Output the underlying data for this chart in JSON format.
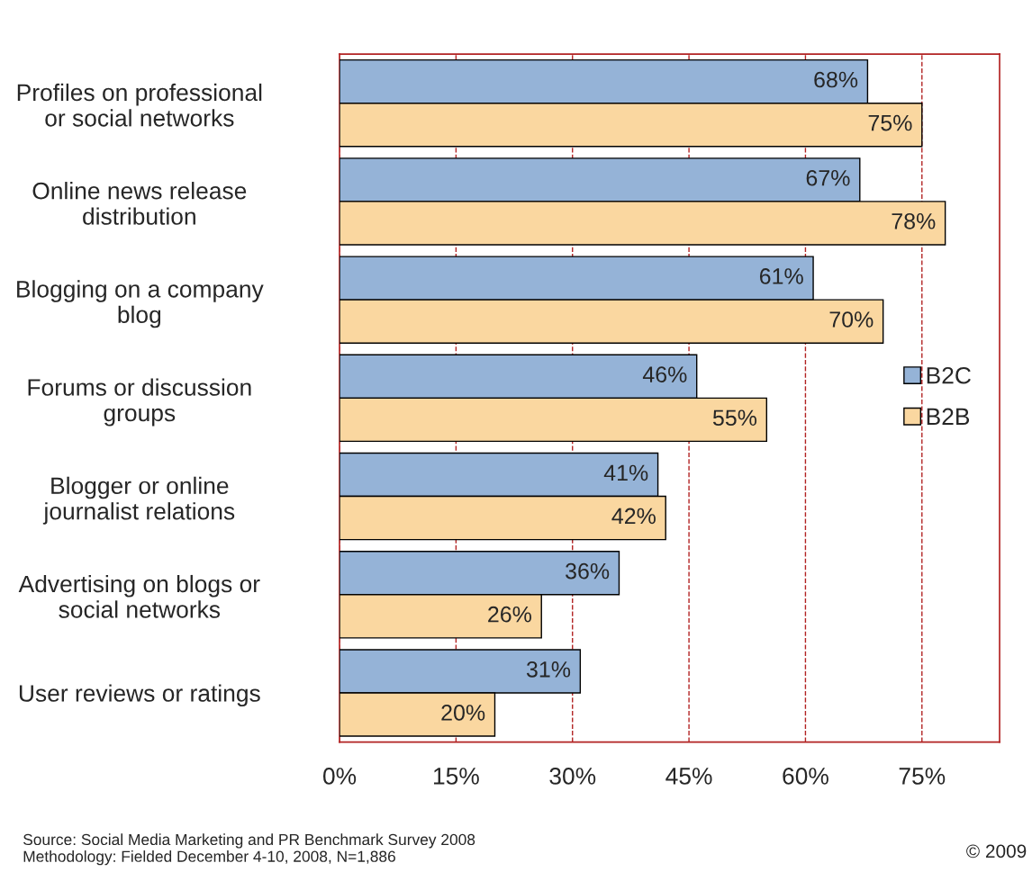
{
  "chart_data": {
    "type": "bar",
    "orientation": "horizontal",
    "categories": [
      "Profiles on professional\nor social networks",
      "Online news release\ndistribution",
      "Blogging on a company\nblog",
      "Forums or discussion\ngroups",
      "Blogger or online\njournalist relations",
      "Advertising on blogs or\nsocial networks",
      "User reviews or ratings"
    ],
    "series": [
      {
        "name": "B2C",
        "color": "#95b3d7",
        "values": [
          68,
          67,
          61,
          46,
          41,
          36,
          31
        ],
        "value_labels": [
          "68%",
          "67%",
          "61%",
          "46%",
          "41%",
          "36%",
          "31%"
        ]
      },
      {
        "name": "B2B",
        "color": "#fad7a0",
        "values": [
          75,
          78,
          70,
          55,
          42,
          26,
          20
        ],
        "value_labels": [
          "75%",
          "78%",
          "70%",
          "55%",
          "42%",
          "26%",
          "20%"
        ]
      }
    ],
    "xlim": [
      0,
      85
    ],
    "xticks": [
      {
        "value": 0,
        "label": "0%"
      },
      {
        "value": 15,
        "label": "15%"
      },
      {
        "value": 30,
        "label": "30%"
      },
      {
        "value": 45,
        "label": "45%"
      },
      {
        "value": 60,
        "label": "60%"
      },
      {
        "value": 75,
        "label": "75%"
      }
    ],
    "grid": "x",
    "legend": "right",
    "annotations": [
      "Source: Social Media Marketing and PR Benchmark Survey 2008\nMethodology: Fielded December 4-10, 2008, N=1,886",
      "© 2009"
    ]
  }
}
